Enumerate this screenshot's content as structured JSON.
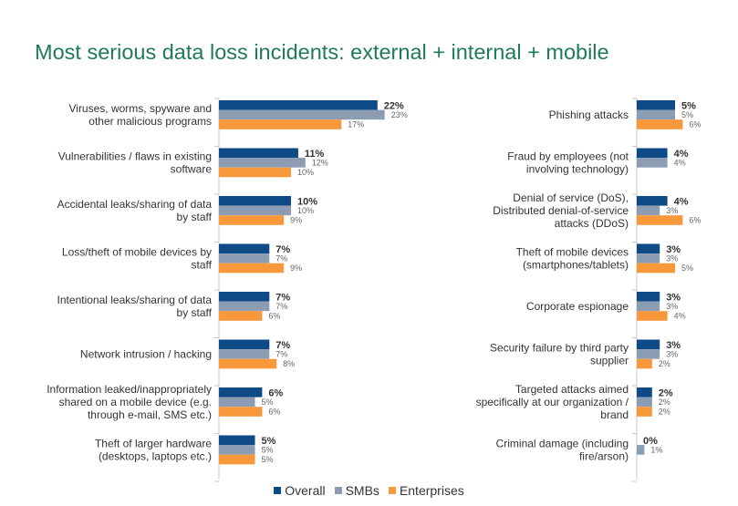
{
  "title": "Most serious data loss incidents: external + internal + mobile",
  "colors": {
    "Overall": "#0d4a86",
    "SMBs": "#8c9db3",
    "Enterprises": "#f7983a"
  },
  "chart_data": [
    {
      "type": "bar",
      "orientation": "horizontal",
      "series_names": [
        "Overall",
        "SMBs",
        "Enterprises"
      ],
      "categories": [
        [
          "Viruses, worms, spyware and",
          "other malicious programs"
        ],
        [
          "Vulnerabilities / flaws in existing",
          "software"
        ],
        [
          "Accidental leaks/sharing of data",
          "by staff"
        ],
        [
          "Loss/theft of mobile devices by",
          "staff"
        ],
        [
          "Intentional leaks/sharing of data",
          "by staff"
        ],
        [
          "Network intrusion / hacking"
        ],
        [
          "Information leaked/inappropriately",
          "shared on a mobile device (e.g.",
          "through e-mail, SMS etc.)"
        ],
        [
          "Theft of larger hardware",
          "(desktops, laptops etc.)"
        ]
      ],
      "series": [
        {
          "name": "Overall",
          "values": [
            22,
            11,
            10,
            7,
            7,
            7,
            6,
            5
          ]
        },
        {
          "name": "SMBs",
          "values": [
            23,
            12,
            10,
            7,
            7,
            7,
            5,
            5
          ]
        },
        {
          "name": "Enterprises",
          "values": [
            17,
            10,
            9,
            9,
            6,
            8,
            6,
            5
          ]
        }
      ],
      "unit": "%"
    },
    {
      "type": "bar",
      "orientation": "horizontal",
      "series_names": [
        "Overall",
        "SMBs",
        "Enterprises"
      ],
      "categories": [
        [
          "Phishing attacks"
        ],
        [
          "Fraud by employees (not",
          "involving technology)"
        ],
        [
          "Denial of service (DoS),",
          "Distributed denial-of-service",
          "attacks (DDoS)"
        ],
        [
          "Theft of mobile devices",
          "(smartphones/tablets)"
        ],
        [
          "Corporate espionage"
        ],
        [
          "Security failure by third party",
          "supplier"
        ],
        [
          "Targeted attacks aimed",
          "specifically at our organization /",
          "brand"
        ],
        [
          "Criminal damage (including",
          "fire/arson)"
        ]
      ],
      "series": [
        {
          "name": "Overall",
          "values": [
            5,
            4,
            4,
            3,
            3,
            3,
            2,
            0
          ]
        },
        {
          "name": "SMBs",
          "values": [
            5,
            4,
            3,
            3,
            3,
            3,
            2,
            1
          ]
        },
        {
          "name": "Enterprises",
          "values": [
            6,
            null,
            6,
            5,
            4,
            2,
            2,
            null
          ]
        }
      ],
      "unit": "%"
    }
  ]
}
